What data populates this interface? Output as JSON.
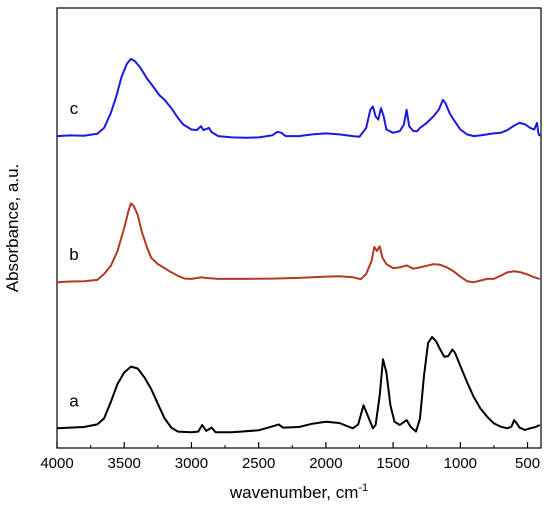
{
  "chart_data": {
    "type": "line",
    "xlabel": "wavenumber, cm",
    "xlabel_superscript": "-1",
    "ylabel": "Absorbance, a.u.",
    "xlim": [
      4000,
      400
    ],
    "x_reversed": true,
    "y_ticks_shown": false,
    "grid": false,
    "legend": "none",
    "x_ticks": [
      4000,
      3500,
      3000,
      2500,
      2000,
      1500,
      1000,
      500
    ],
    "x_tick_labels": [
      "4000",
      "3500",
      "3000",
      "2500",
      "2000",
      "1500",
      "1000",
      "500"
    ],
    "series": [
      {
        "label": "a",
        "color": "#000000",
        "points": [
          [
            4000,
            0.06
          ],
          [
            3900,
            0.062
          ],
          [
            3800,
            0.064
          ],
          [
            3700,
            0.072
          ],
          [
            3650,
            0.09
          ],
          [
            3600,
            0.14
          ],
          [
            3550,
            0.195
          ],
          [
            3500,
            0.23
          ],
          [
            3450,
            0.248
          ],
          [
            3400,
            0.242
          ],
          [
            3350,
            0.215
          ],
          [
            3300,
            0.18
          ],
          [
            3250,
            0.135
          ],
          [
            3200,
            0.09
          ],
          [
            3150,
            0.062
          ],
          [
            3100,
            0.05
          ],
          [
            3000,
            0.048
          ],
          [
            2950,
            0.05
          ],
          [
            2920,
            0.07
          ],
          [
            2890,
            0.052
          ],
          [
            2850,
            0.062
          ],
          [
            2820,
            0.048
          ],
          [
            2700,
            0.048
          ],
          [
            2500,
            0.054
          ],
          [
            2380,
            0.068
          ],
          [
            2350,
            0.072
          ],
          [
            2320,
            0.062
          ],
          [
            2200,
            0.064
          ],
          [
            2100,
            0.074
          ],
          [
            2000,
            0.08
          ],
          [
            1900,
            0.076
          ],
          [
            1800,
            0.06
          ],
          [
            1760,
            0.072
          ],
          [
            1720,
            0.13
          ],
          [
            1690,
            0.1
          ],
          [
            1650,
            0.06
          ],
          [
            1630,
            0.07
          ],
          [
            1600,
            0.16
          ],
          [
            1575,
            0.27
          ],
          [
            1550,
            0.23
          ],
          [
            1520,
            0.13
          ],
          [
            1490,
            0.08
          ],
          [
            1450,
            0.07
          ],
          [
            1400,
            0.085
          ],
          [
            1370,
            0.065
          ],
          [
            1330,
            0.05
          ],
          [
            1300,
            0.09
          ],
          [
            1270,
            0.22
          ],
          [
            1240,
            0.32
          ],
          [
            1210,
            0.338
          ],
          [
            1180,
            0.325
          ],
          [
            1150,
            0.3
          ],
          [
            1120,
            0.278
          ],
          [
            1090,
            0.28
          ],
          [
            1060,
            0.3
          ],
          [
            1040,
            0.29
          ],
          [
            1000,
            0.25
          ],
          [
            950,
            0.2
          ],
          [
            900,
            0.155
          ],
          [
            850,
            0.12
          ],
          [
            800,
            0.095
          ],
          [
            750,
            0.075
          ],
          [
            700,
            0.065
          ],
          [
            650,
            0.06
          ],
          [
            620,
            0.065
          ],
          [
            600,
            0.085
          ],
          [
            580,
            0.075
          ],
          [
            560,
            0.062
          ],
          [
            520,
            0.055
          ],
          [
            480,
            0.06
          ],
          [
            440,
            0.064
          ],
          [
            410,
            0.07
          ]
        ]
      },
      {
        "label": "b",
        "color": "#b03a22",
        "points": [
          [
            4000,
            0.505
          ],
          [
            3900,
            0.507
          ],
          [
            3800,
            0.508
          ],
          [
            3700,
            0.512
          ],
          [
            3650,
            0.53
          ],
          [
            3600,
            0.555
          ],
          [
            3550,
            0.6
          ],
          [
            3500,
            0.67
          ],
          [
            3470,
            0.72
          ],
          [
            3450,
            0.745
          ],
          [
            3430,
            0.738
          ],
          [
            3400,
            0.71
          ],
          [
            3370,
            0.66
          ],
          [
            3330,
            0.61
          ],
          [
            3300,
            0.58
          ],
          [
            3250,
            0.56
          ],
          [
            3200,
            0.548
          ],
          [
            3150,
            0.535
          ],
          [
            3100,
            0.524
          ],
          [
            3050,
            0.516
          ],
          [
            3000,
            0.515
          ],
          [
            2920,
            0.52
          ],
          [
            2900,
            0.518
          ],
          [
            2800,
            0.515
          ],
          [
            2600,
            0.515
          ],
          [
            2400,
            0.516
          ],
          [
            2200,
            0.518
          ],
          [
            2000,
            0.522
          ],
          [
            1900,
            0.523
          ],
          [
            1800,
            0.52
          ],
          [
            1740,
            0.514
          ],
          [
            1700,
            0.53
          ],
          [
            1660,
            0.57
          ],
          [
            1640,
            0.612
          ],
          [
            1620,
            0.6
          ],
          [
            1600,
            0.614
          ],
          [
            1580,
            0.58
          ],
          [
            1550,
            0.56
          ],
          [
            1500,
            0.548
          ],
          [
            1450,
            0.55
          ],
          [
            1400,
            0.556
          ],
          [
            1350,
            0.546
          ],
          [
            1300,
            0.55
          ],
          [
            1250,
            0.555
          ],
          [
            1200,
            0.56
          ],
          [
            1150,
            0.558
          ],
          [
            1100,
            0.55
          ],
          [
            1050,
            0.538
          ],
          [
            1000,
            0.522
          ],
          [
            950,
            0.508
          ],
          [
            900,
            0.505
          ],
          [
            850,
            0.51
          ],
          [
            800,
            0.515
          ],
          [
            750,
            0.515
          ],
          [
            700,
            0.525
          ],
          [
            650,
            0.535
          ],
          [
            600,
            0.538
          ],
          [
            550,
            0.535
          ],
          [
            500,
            0.528
          ],
          [
            450,
            0.52
          ],
          [
            410,
            0.515
          ]
        ]
      },
      {
        "label": "c",
        "color": "#1a1adf",
        "points": [
          [
            4000,
            0.95
          ],
          [
            3900,
            0.952
          ],
          [
            3800,
            0.951
          ],
          [
            3700,
            0.957
          ],
          [
            3650,
            0.975
          ],
          [
            3600,
            1.02
          ],
          [
            3560,
            1.07
          ],
          [
            3520,
            1.13
          ],
          [
            3480,
            1.17
          ],
          [
            3450,
            1.185
          ],
          [
            3420,
            1.178
          ],
          [
            3380,
            1.158
          ],
          [
            3330,
            1.125
          ],
          [
            3280,
            1.098
          ],
          [
            3240,
            1.075
          ],
          [
            3200,
            1.06
          ],
          [
            3150,
            1.035
          ],
          [
            3100,
            1.005
          ],
          [
            3060,
            0.985
          ],
          [
            3000,
            0.97
          ],
          [
            2960,
            0.968
          ],
          [
            2930,
            0.98
          ],
          [
            2910,
            0.968
          ],
          [
            2870,
            0.975
          ],
          [
            2850,
            0.962
          ],
          [
            2800,
            0.95
          ],
          [
            2700,
            0.946
          ],
          [
            2600,
            0.945
          ],
          [
            2500,
            0.946
          ],
          [
            2400,
            0.952
          ],
          [
            2360,
            0.963
          ],
          [
            2330,
            0.96
          ],
          [
            2300,
            0.95
          ],
          [
            2200,
            0.95
          ],
          [
            2100,
            0.955
          ],
          [
            2000,
            0.958
          ],
          [
            1900,
            0.955
          ],
          [
            1800,
            0.95
          ],
          [
            1750,
            0.948
          ],
          [
            1700,
            0.975
          ],
          [
            1670,
            1.03
          ],
          [
            1650,
            1.04
          ],
          [
            1630,
            1.01
          ],
          [
            1610,
            1.0
          ],
          [
            1590,
            1.035
          ],
          [
            1570,
            1.01
          ],
          [
            1550,
            0.97
          ],
          [
            1500,
            0.96
          ],
          [
            1450,
            0.965
          ],
          [
            1420,
            0.985
          ],
          [
            1400,
            1.03
          ],
          [
            1380,
            0.98
          ],
          [
            1350,
            0.965
          ],
          [
            1320,
            0.965
          ],
          [
            1300,
            0.975
          ],
          [
            1250,
            0.99
          ],
          [
            1200,
            1.01
          ],
          [
            1160,
            1.03
          ],
          [
            1130,
            1.06
          ],
          [
            1110,
            1.05
          ],
          [
            1080,
            1.02
          ],
          [
            1050,
            1.0
          ],
          [
            1000,
            0.97
          ],
          [
            950,
            0.955
          ],
          [
            900,
            0.95
          ],
          [
            850,
            0.952
          ],
          [
            800,
            0.955
          ],
          [
            750,
            0.958
          ],
          [
            700,
            0.96
          ],
          [
            650,
            0.968
          ],
          [
            600,
            0.982
          ],
          [
            560,
            0.99
          ],
          [
            520,
            0.986
          ],
          [
            480,
            0.975
          ],
          [
            450,
            0.97
          ],
          [
            430,
            0.99
          ],
          [
            420,
            0.96
          ],
          [
            410,
            0.95
          ]
        ]
      }
    ]
  }
}
